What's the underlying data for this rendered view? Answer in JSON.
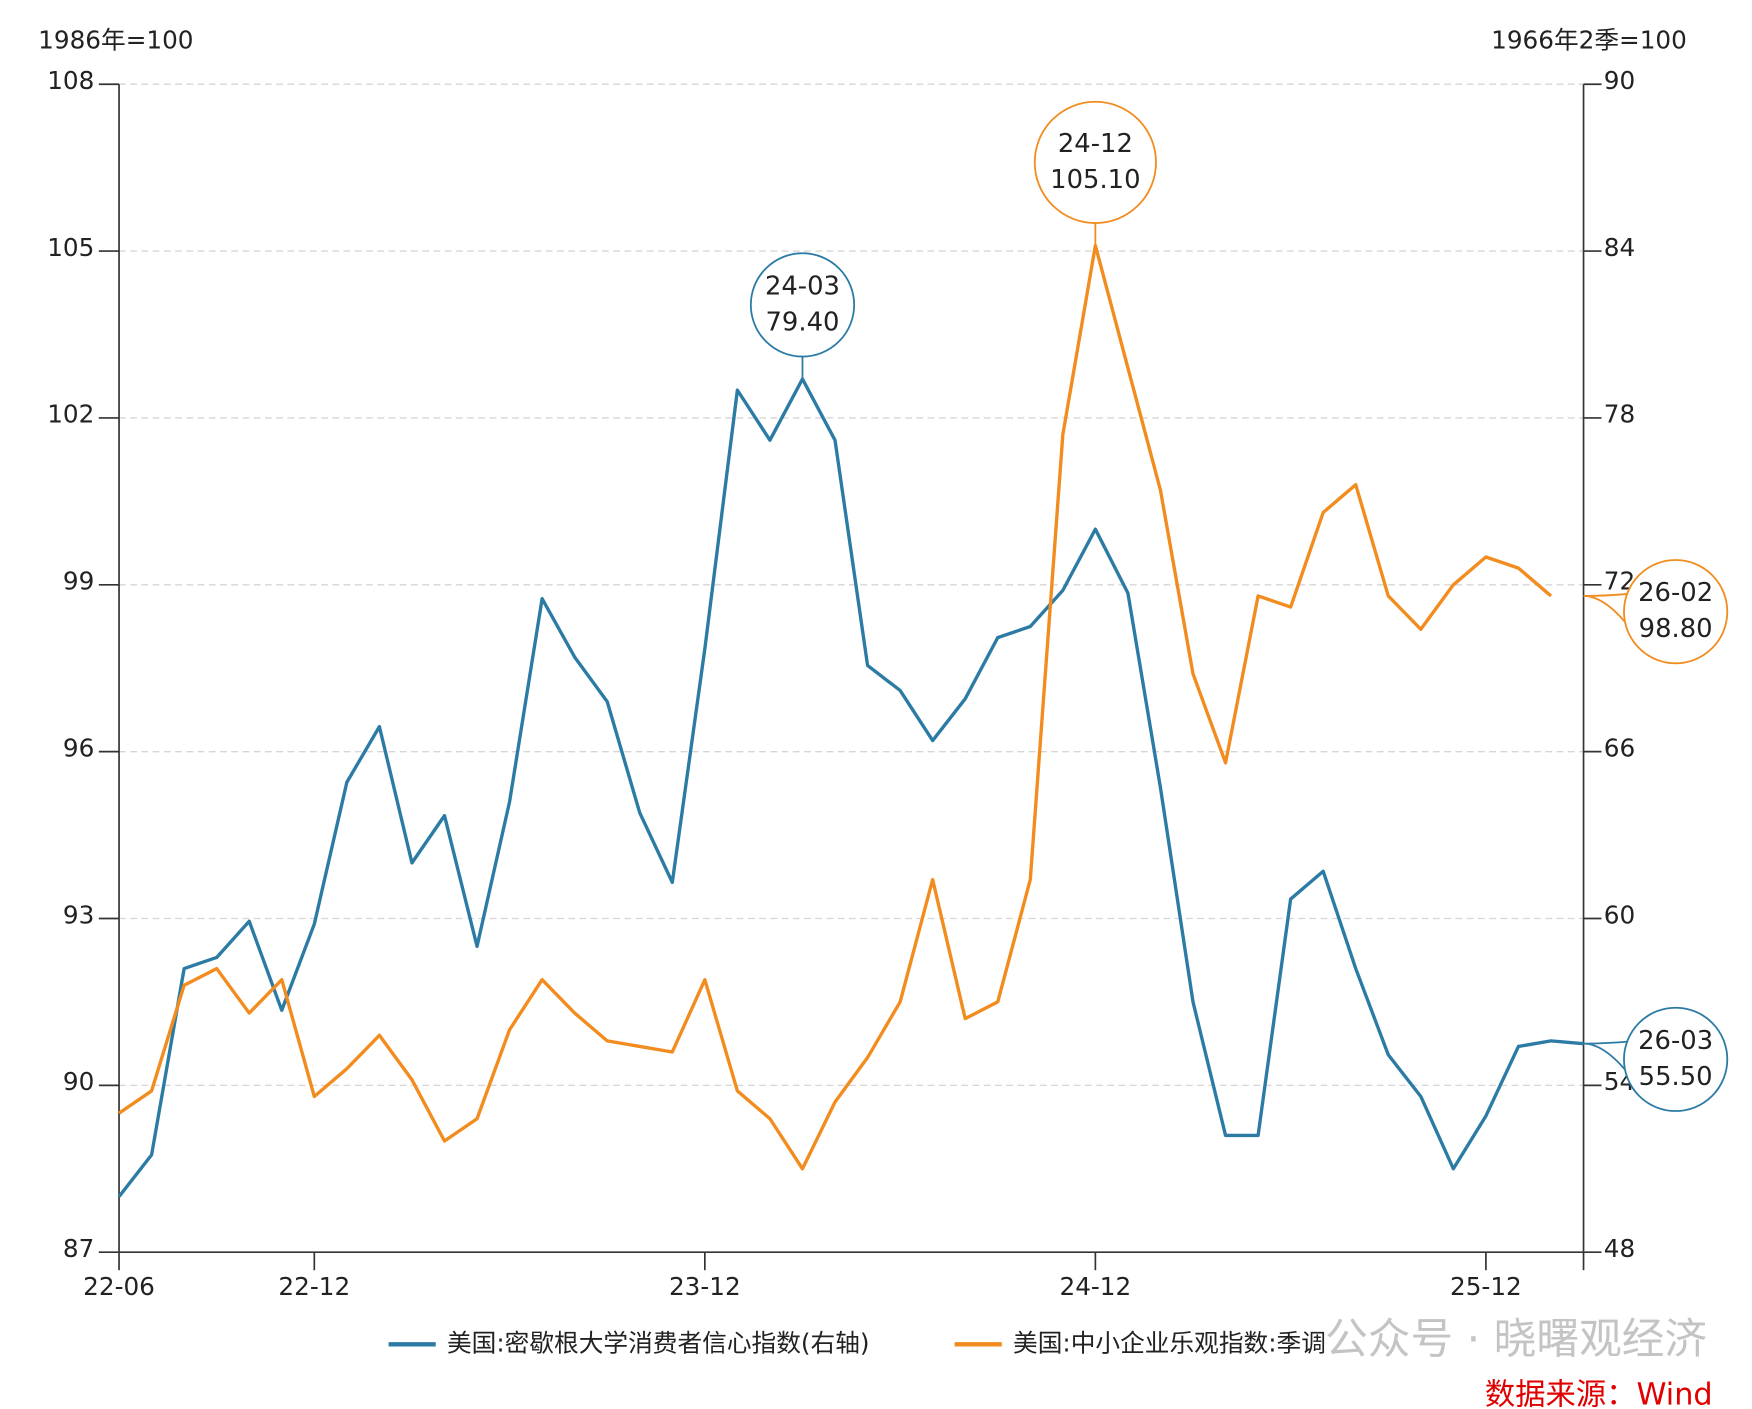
{
  "chart_data": {
    "type": "line",
    "y_axis_label": "1986年=100",
    "y2_axis_label": "1966年2季=100",
    "categories": [
      "22-06",
      null,
      null,
      null,
      null,
      null,
      "22-12",
      null,
      null,
      null,
      null,
      null,
      null,
      null,
      null,
      null,
      null,
      null,
      "23-12",
      null,
      null,
      null,
      null,
      null,
      null,
      null,
      null,
      null,
      null,
      null,
      "24-12",
      null,
      null,
      null,
      null,
      null,
      null,
      null,
      null,
      null,
      null,
      null,
      "25-12",
      null,
      null,
      null
    ],
    "ylim": [
      87,
      108
    ],
    "yticks": [
      87,
      90,
      93,
      96,
      99,
      102,
      105,
      108
    ],
    "y2lim": [
      48,
      90
    ],
    "y2ticks": [
      48,
      54,
      60,
      66,
      72,
      78,
      84,
      90
    ],
    "grid": true,
    "series": [
      {
        "name": "美国:密歇根大学消费者信心指数(右轴)",
        "color": "#2b7ba5",
        "axis": "y2",
        "values": [
          50.0,
          51.5,
          58.2,
          58.6,
          59.9,
          56.7,
          59.8,
          64.9,
          66.9,
          62.0,
          63.7,
          59.0,
          64.2,
          71.5,
          69.4,
          67.8,
          63.8,
          61.3,
          69.7,
          79.0,
          77.2,
          79.4,
          77.2,
          69.1,
          68.2,
          66.4,
          67.9,
          70.1,
          70.5,
          71.8,
          74.0,
          71.7,
          64.7,
          57.0,
          52.2,
          52.2,
          60.7,
          61.7,
          58.2,
          55.1,
          53.6,
          51.0,
          52.9,
          55.4,
          55.6,
          55.5
        ],
        "label_categories": [
          null,
          null,
          null,
          null,
          null,
          null,
          null,
          null,
          null,
          null,
          null,
          null,
          null,
          null,
          null,
          null,
          null,
          null,
          null,
          null,
          null,
          "24-03",
          null,
          null,
          null,
          null,
          null,
          null,
          null,
          null,
          null,
          null,
          null,
          null,
          null,
          null,
          null,
          null,
          null,
          null,
          null,
          null,
          null,
          null,
          null,
          "26-03"
        ],
        "value_labels": [
          null,
          null,
          null,
          null,
          null,
          null,
          null,
          null,
          null,
          null,
          null,
          null,
          null,
          null,
          null,
          null,
          null,
          null,
          null,
          null,
          null,
          "79.40",
          null,
          null,
          null,
          null,
          null,
          null,
          null,
          null,
          null,
          null,
          null,
          null,
          null,
          null,
          null,
          null,
          null,
          null,
          null,
          null,
          null,
          null,
          null,
          "55.50"
        ]
      },
      {
        "name": "美国:中小企业乐观指数:季调",
        "color": "#f28c1f",
        "values": [
          89.5,
          89.9,
          91.8,
          92.1,
          91.3,
          91.9,
          89.8,
          90.3,
          90.9,
          90.1,
          89.0,
          89.4,
          91.0,
          91.9,
          91.3,
          90.8,
          90.7,
          90.6,
          91.9,
          89.9,
          89.4,
          88.5,
          89.7,
          90.5,
          91.5,
          93.7,
          91.2,
          91.5,
          93.7,
          101.7,
          105.1,
          102.9,
          100.7,
          97.4,
          95.8,
          98.8,
          98.6,
          100.3,
          100.8,
          98.8,
          98.2,
          99.0,
          99.5,
          99.3,
          98.8,
          null
        ],
        "label_categories": [
          null,
          null,
          null,
          null,
          null,
          null,
          null,
          null,
          null,
          null,
          null,
          null,
          null,
          null,
          null,
          null,
          null,
          null,
          null,
          null,
          null,
          null,
          null,
          null,
          null,
          null,
          null,
          null,
          null,
          null,
          "24-12",
          null,
          null,
          null,
          null,
          null,
          null,
          null,
          null,
          null,
          null,
          null,
          null,
          null,
          "26-02",
          null
        ],
        "value_labels": [
          null,
          null,
          null,
          null,
          null,
          null,
          null,
          null,
          null,
          null,
          null,
          null,
          null,
          null,
          null,
          null,
          null,
          null,
          null,
          null,
          null,
          null,
          null,
          null,
          null,
          null,
          null,
          null,
          null,
          null,
          "105.10",
          null,
          null,
          null,
          null,
          null,
          null,
          null,
          null,
          null,
          null,
          null,
          null,
          null,
          "98.80",
          null
        ]
      }
    ],
    "watermark": "公众号 · 晓曙观经济",
    "source": "数据来源：Wind"
  }
}
